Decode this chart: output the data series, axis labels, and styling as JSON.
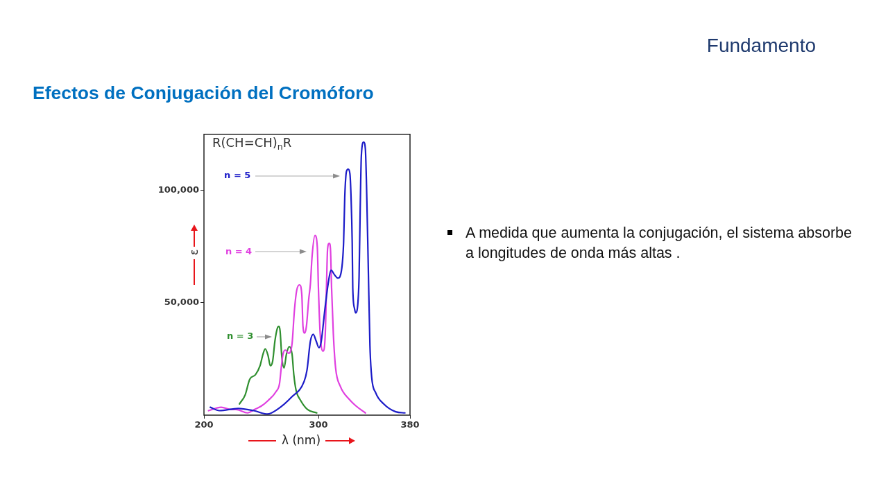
{
  "chart_data": {
    "type": "line",
    "title": "Efectos de Conjugación del Cromóforo",
    "xlabel": "λ (nm)",
    "ylabel": "ε",
    "annotations": [
      "Fundamento",
      "R(CH=CH)$_{n}$R",
      "A medida que aumenta la conjugación, el sistema absorbe a longitudes de onda más altas ."
    ],
    "xlim": [
      200,
      380
    ],
    "xticks": [
      200,
      300,
      380
    ],
    "ylim": [
      0,
      125000
    ],
    "yticks": [
      {
        "value": 50000,
        "label": "50,000"
      },
      {
        "value": 100000,
        "label": "100,000"
      }
    ],
    "series": [
      {
        "name": "n = 5",
        "color": "#1c1cc8",
        "x": [
          205.5,
          213.5,
          230,
          243.5,
          255.5,
          264,
          276.5,
          287.5,
          290,
          293,
          295.5,
          298,
          300.5,
          302.5,
          305.5,
          308.5,
          311,
          314,
          317,
          320,
          322,
          323,
          324.5,
          326,
          327.5,
          328.5,
          329.5,
          330,
          331.5,
          332.5,
          334,
          335.5,
          336.5,
          337.5,
          339.5,
          341,
          342,
          343.5,
          345,
          346.5,
          350,
          357,
          367.5,
          375.5
        ],
        "values": [
          3500,
          2000,
          3000,
          2000,
          500,
          2500,
          8000,
          15000,
          20000,
          33000,
          36000,
          33000,
          30000,
          33000,
          46500,
          58500,
          64500,
          62500,
          61000,
          64000,
          77000,
          97000,
          108500,
          109500,
          107500,
          97000,
          77000,
          56500,
          47500,
          45500,
          47500,
          61500,
          92000,
          115500,
          121500,
          118500,
          102500,
          67000,
          31000,
          17000,
          10000,
          5000,
          1500,
          1000
        ]
      },
      {
        "name": "n = 4",
        "color": "#e040e0",
        "x": [
          204,
          215,
          224,
          228,
          238,
          244,
          250,
          256,
          263,
          266,
          267.5,
          269,
          271,
          274,
          277,
          279,
          281,
          283.5,
          285.5,
          286.5,
          288,
          289.5,
          291.5,
          293,
          294.5,
          297,
          299,
          300,
          301.5,
          304,
          306,
          307,
          308,
          309.5,
          310.5,
          311.5,
          313,
          315,
          319,
          327,
          333,
          341
        ],
        "values": [
          2000,
          3500,
          2500,
          2500,
          1000,
          2500,
          4000,
          6500,
          10500,
          14000,
          21000,
          27000,
          29000,
          27500,
          32000,
          46500,
          55500,
          58000,
          53500,
          39500,
          36500,
          39500,
          51500,
          58500,
          71000,
          80000,
          75000,
          56500,
          36500,
          28500,
          36500,
          56500,
          74000,
          76500,
          74000,
          56500,
          36500,
          21000,
          13000,
          7000,
          4000,
          1000
        ]
      },
      {
        "name": "n = 3",
        "color": "#2f8f2f",
        "x": [
          231,
          236,
          240,
          245,
          249,
          251.5,
          253.5,
          256,
          258,
          260,
          262,
          264,
          265.5,
          266.5,
          268,
          270,
          272,
          274.5,
          277,
          278.5,
          280.5,
          284.5,
          290.5,
          298.5
        ],
        "values": [
          5000,
          9000,
          16000,
          18000,
          22000,
          27000,
          29500,
          26500,
          22000,
          24000,
          33000,
          38500,
          39500,
          37500,
          26000,
          21000,
          27000,
          30500,
          27000,
          18000,
          11000,
          6500,
          2500,
          1000
        ]
      }
    ]
  }
}
